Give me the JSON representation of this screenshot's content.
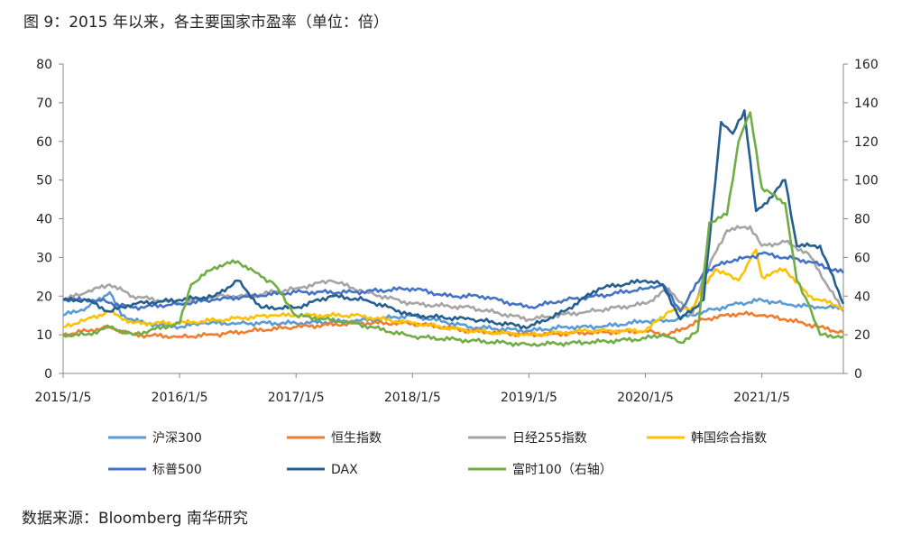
{
  "title": "图 9：2015 年以来，各主要国家市盈率（单位：倍）",
  "source": "数据来源：Bloomberg  南华研究",
  "chart_data": {
    "type": "line",
    "xlabel": "",
    "ylabel": "",
    "x_tick_labels": [
      "2015/1/5",
      "2016/1/5",
      "2017/1/5",
      "2018/1/5",
      "2019/1/5",
      "2020/1/5",
      "2021/1/5"
    ],
    "x_ticks": [
      2015.0,
      2016.0,
      2017.0,
      2018.0,
      2019.0,
      2020.0,
      2021.0
    ],
    "xlim": [
      2015.0,
      2021.7
    ],
    "ylim_left": [
      0,
      80
    ],
    "ylim_right": [
      0,
      160
    ],
    "y_ticks_left": [
      0,
      10,
      20,
      30,
      40,
      50,
      60,
      70,
      80
    ],
    "y_ticks_right": [
      0,
      20,
      40,
      60,
      80,
      100,
      120,
      140,
      160
    ],
    "legend_position": "bottom",
    "series": [
      {
        "name": "沪深300",
        "axis": "left",
        "color": "#5B9BD5",
        "x": [
          2015.0,
          2015.2,
          2015.4,
          2015.5,
          2015.7,
          2016.0,
          2016.2,
          2016.5,
          2017.0,
          2017.5,
          2018.0,
          2018.5,
          2019.0,
          2019.3,
          2019.6,
          2020.0,
          2020.2,
          2020.5,
          2020.8,
          2021.0,
          2021.2,
          2021.5,
          2021.7
        ],
        "y": [
          15,
          17,
          21,
          15,
          13,
          12,
          13,
          13,
          13,
          13.5,
          15,
          12,
          11,
          12,
          12,
          13.5,
          13.5,
          16,
          18,
          19,
          18,
          17,
          17
        ]
      },
      {
        "name": "恒生指数",
        "axis": "left",
        "color": "#ED7D31",
        "x": [
          2015.0,
          2015.2,
          2015.4,
          2015.6,
          2016.0,
          2016.3,
          2016.6,
          2017.0,
          2017.5,
          2018.0,
          2018.5,
          2019.0,
          2019.5,
          2020.0,
          2020.2,
          2020.5,
          2020.8,
          2021.0,
          2021.2,
          2021.5,
          2021.7
        ],
        "y": [
          10,
          11,
          12,
          10,
          9.5,
          10,
          11,
          12,
          13,
          13,
          11,
          10,
          10.5,
          11,
          10,
          14,
          15.5,
          15,
          14,
          12,
          10.5
        ]
      },
      {
        "name": "日经255指数",
        "axis": "left",
        "color": "#A5A5A5",
        "x": [
          2015.0,
          2015.2,
          2015.4,
          2015.6,
          2016.0,
          2016.3,
          2016.6,
          2017.0,
          2017.3,
          2017.6,
          2018.0,
          2018.5,
          2019.0,
          2019.5,
          2020.0,
          2020.2,
          2020.4,
          2020.5,
          2020.7,
          2020.9,
          2021.0,
          2021.2,
          2021.4,
          2021.7
        ],
        "y": [
          19,
          21,
          23,
          20,
          18,
          20,
          20,
          22,
          24,
          21,
          18,
          17,
          14,
          16,
          18,
          22,
          15,
          25,
          37,
          38,
          33,
          34,
          31,
          16
        ]
      },
      {
        "name": "韩国综合指数",
        "axis": "left",
        "color": "#FFC000",
        "x": [
          2015.0,
          2015.2,
          2015.4,
          2015.6,
          2016.0,
          2016.4,
          2016.8,
          2017.0,
          2017.5,
          2018.0,
          2018.5,
          2019.0,
          2019.5,
          2020.0,
          2020.2,
          2020.4,
          2020.6,
          2020.8,
          2020.95,
          2021.0,
          2021.2,
          2021.4,
          2021.7
        ],
        "y": [
          12,
          14,
          16,
          13,
          13,
          14,
          15,
          15,
          15,
          13,
          11,
          10,
          11,
          11,
          16,
          17,
          27,
          24,
          32,
          25,
          27,
          20,
          17
        ]
      },
      {
        "name": "标普500",
        "axis": "left",
        "color": "#4472C4",
        "x": [
          2015.0,
          2015.3,
          2015.6,
          2016.0,
          2016.3,
          2016.6,
          2017.0,
          2017.5,
          2018.0,
          2018.3,
          2018.6,
          2019.0,
          2019.3,
          2019.6,
          2020.0,
          2020.15,
          2020.3,
          2020.5,
          2020.7,
          2020.9,
          2021.0,
          2021.2,
          2021.4,
          2021.7
        ],
        "y": [
          19,
          19,
          17,
          18,
          19,
          20,
          21,
          21,
          22,
          20,
          20,
          17,
          19,
          20,
          22,
          23,
          16,
          26,
          29,
          30,
          31,
          30,
          29,
          26
        ]
      },
      {
        "name": "DAX",
        "axis": "left",
        "color": "#255E91",
        "x": [
          2015.0,
          2015.2,
          2015.4,
          2015.6,
          2016.0,
          2016.3,
          2016.5,
          2016.7,
          2017.0,
          2017.3,
          2017.6,
          2018.0,
          2018.5,
          2019.0,
          2019.3,
          2019.6,
          2020.0,
          2020.15,
          2020.3,
          2020.5,
          2020.65,
          2020.75,
          2020.85,
          2020.95,
          2021.0,
          2021.2,
          2021.3,
          2021.5,
          2021.7
        ],
        "y": [
          19,
          19,
          16,
          18,
          19,
          20,
          24,
          17,
          17,
          20,
          19,
          15,
          14,
          12,
          16,
          22,
          24,
          23,
          14,
          19,
          65,
          62,
          68,
          42,
          43,
          50,
          33,
          33,
          18
        ]
      },
      {
        "name": "富时100（右轴）",
        "axis": "right",
        "color": "#70AD47",
        "x": [
          2015.0,
          2015.2,
          2015.4,
          2015.6,
          2016.0,
          2016.1,
          2016.3,
          2016.5,
          2016.7,
          2016.8,
          2017.0,
          2017.5,
          2018.0,
          2018.5,
          2019.0,
          2019.5,
          2020.0,
          2020.15,
          2020.3,
          2020.45,
          2020.55,
          2020.7,
          2020.8,
          2020.9,
          2020.95,
          2021.0,
          2021.2,
          2021.3,
          2021.4,
          2021.5,
          2021.7
        ],
        "y": [
          20,
          20,
          24,
          20,
          26,
          46,
          55,
          58,
          50,
          47,
          30,
          26,
          19,
          17,
          15,
          16,
          18,
          20,
          16,
          22,
          78,
          82,
          120,
          135,
          116,
          96,
          88,
          48,
          36,
          20,
          19
        ]
      }
    ]
  }
}
